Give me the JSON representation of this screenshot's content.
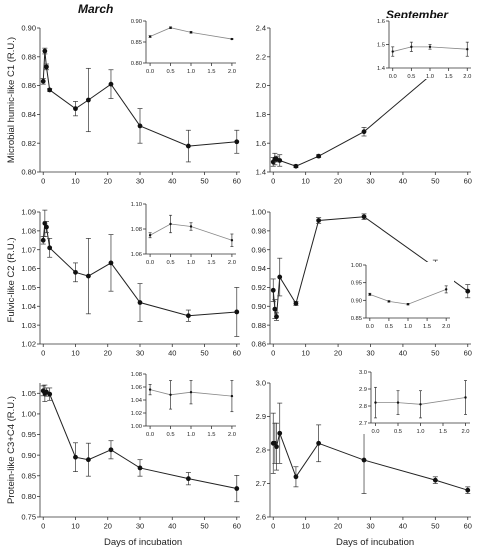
{
  "headers": {
    "left": "March",
    "right": "September"
  },
  "xlabels": {
    "left": "Days of incubation",
    "right": "Days of incubation"
  },
  "chart_data": [
    {
      "type": "line",
      "panel": "March C1",
      "ylabel": "Microbial humic-like C1 (R.U.)",
      "xlim": [
        -1,
        61
      ],
      "ylim": [
        0.8,
        0.9
      ],
      "xticks": [
        "0",
        "10",
        "20",
        "30",
        "40",
        "50",
        "60"
      ],
      "yticks": [
        "0.80",
        "0.82",
        "0.84",
        "0.86",
        "0.88",
        "0.90"
      ],
      "series": [
        {
          "x": [
            0,
            0.5,
            1,
            2,
            10,
            14,
            21,
            30,
            45,
            60
          ],
          "y": [
            0.863,
            0.884,
            0.873,
            0.857,
            0.844,
            0.85,
            0.861,
            0.832,
            0.818,
            0.821
          ],
          "err": [
            0.002,
            0.002,
            0.002,
            0.001,
            0.005,
            0.022,
            0.01,
            0.012,
            0.011,
            0.008
          ]
        }
      ],
      "inset": {
        "xlim": [
          -0.1,
          2.1
        ],
        "ylim": [
          0.8,
          0.9
        ],
        "xticks": [
          "0.0",
          "0.5",
          "1.0",
          "1.5",
          "2.0"
        ],
        "yticks": [
          "0.80",
          "0.85",
          "0.90"
        ],
        "x": [
          0,
          0.5,
          1,
          2
        ],
        "y": [
          0.863,
          0.884,
          0.873,
          0.857
        ],
        "err": [
          0.002,
          0.002,
          0.002,
          0.001
        ]
      }
    },
    {
      "type": "line",
      "panel": "September C1",
      "ylabel": "",
      "xlim": [
        -1,
        61
      ],
      "ylim": [
        1.4,
        2.4
      ],
      "xticks": [
        "0",
        "10",
        "20",
        "30",
        "40",
        "50",
        "60"
      ],
      "yticks": [
        "1.4",
        "1.6",
        "1.8",
        "2.0",
        "2.2",
        "2.4"
      ],
      "series": [
        {
          "x": [
            0,
            0.5,
            1,
            2,
            7,
            14,
            28,
            50,
            60
          ],
          "y": [
            1.47,
            1.49,
            1.49,
            1.48,
            1.44,
            1.51,
            1.68,
            2.1,
            2.3
          ],
          "err": [
            0.03,
            0.04,
            0.02,
            0.04,
            0.01,
            0.01,
            0.03,
            0.01,
            0.01
          ]
        }
      ],
      "inset": {
        "xlim": [
          -0.1,
          2.1
        ],
        "ylim": [
          1.4,
          1.6
        ],
        "xticks": [
          "0.0",
          "0.5",
          "1.0",
          "1.5",
          "2.0"
        ],
        "yticks": [
          "1.4",
          "1.5",
          "1.6"
        ],
        "x": [
          0,
          0.5,
          1,
          2
        ],
        "y": [
          1.47,
          1.49,
          1.49,
          1.48
        ],
        "err": [
          0.02,
          0.02,
          0.01,
          0.03
        ]
      }
    },
    {
      "type": "line",
      "panel": "March C2",
      "ylabel": "Fulvic-like C2 (R.U.)",
      "xlim": [
        -1,
        61
      ],
      "ylim": [
        1.02,
        1.09
      ],
      "xticks": [
        "0",
        "10",
        "20",
        "30",
        "40",
        "50",
        "60"
      ],
      "yticks": [
        "1.02",
        "1.03",
        "1.04",
        "1.05",
        "1.06",
        "1.07",
        "1.08",
        "1.09"
      ],
      "series": [
        {
          "x": [
            0,
            0.5,
            1,
            2,
            10,
            14,
            21,
            30,
            45,
            60
          ],
          "y": [
            1.075,
            1.084,
            1.082,
            1.071,
            1.058,
            1.056,
            1.063,
            1.042,
            1.035,
            1.037
          ],
          "err": [
            0.002,
            0.007,
            0.003,
            0.005,
            0.005,
            0.02,
            0.015,
            0.01,
            0.003,
            0.013
          ]
        }
      ],
      "inset": {
        "xlim": [
          -0.1,
          2.1
        ],
        "ylim": [
          1.06,
          1.1
        ],
        "xticks": [
          "0.0",
          "0.5",
          "1.0",
          "1.5",
          "2.0"
        ],
        "yticks": [
          "1.06",
          "1.08",
          "1.10"
        ],
        "x": [
          0,
          0.5,
          1,
          2
        ],
        "y": [
          1.075,
          1.084,
          1.082,
          1.071
        ],
        "err": [
          0.002,
          0.007,
          0.003,
          0.005
        ]
      }
    },
    {
      "type": "line",
      "panel": "September C2",
      "ylabel": "",
      "xlim": [
        -1,
        61
      ],
      "ylim": [
        0.86,
        1.0
      ],
      "xticks": [
        "0",
        "10",
        "20",
        "30",
        "40",
        "50",
        "60"
      ],
      "yticks": [
        "0.86",
        "0.88",
        "0.90",
        "0.92",
        "0.94",
        "0.96",
        "0.98",
        "1.00"
      ],
      "series": [
        {
          "x": [
            0,
            0.5,
            1,
            2,
            7,
            14,
            28,
            50,
            60
          ],
          "y": [
            0.917,
            0.897,
            0.889,
            0.931,
            0.903,
            0.991,
            0.995,
            0.941,
            0.916
          ],
          "err": [
            0.012,
            0.01,
            0.004,
            0.02,
            0.002,
            0.003,
            0.003,
            0.008,
            0.007
          ]
        }
      ],
      "inset": {
        "xlim": [
          -0.1,
          2.1
        ],
        "ylim": [
          0.85,
          1.0
        ],
        "xticks": [
          "0.0",
          "0.5",
          "1.0",
          "1.5",
          "2.0"
        ],
        "yticks": [
          "0.85",
          "0.90",
          "0.95",
          "1.00"
        ],
        "x": [
          0,
          0.5,
          1,
          2
        ],
        "y": [
          0.917,
          0.897,
          0.889,
          0.931
        ],
        "err": [
          0.003,
          0.002,
          0.002,
          0.01
        ]
      }
    },
    {
      "type": "line",
      "panel": "March C3+C4",
      "ylabel": "Protein-like C3+C4 (R.U.)",
      "xlim": [
        -1,
        61
      ],
      "ylim": [
        0.75,
        1.075
      ],
      "xticks": [
        "0",
        "10",
        "20",
        "30",
        "40",
        "50",
        "60"
      ],
      "yticks": [
        "0.75",
        "0.80",
        "0.85",
        "0.90",
        "0.95",
        "1.00",
        "1.05"
      ],
      "series": [
        {
          "x": [
            0,
            0.5,
            1,
            2,
            10,
            14,
            21,
            30,
            45,
            60
          ],
          "y": [
            1.056,
            1.05,
            1.053,
            1.048,
            0.895,
            0.889,
            0.913,
            0.869,
            0.843,
            0.819
          ],
          "err": [
            0.012,
            0.02,
            0.01,
            0.015,
            0.035,
            0.04,
            0.022,
            0.02,
            0.015,
            0.032
          ]
        }
      ],
      "inset": {
        "xlim": [
          -0.1,
          2.1
        ],
        "ylim": [
          1.0,
          1.08
        ],
        "xticks": [
          "0.0",
          "0.5",
          "1.0",
          "1.5",
          "2.0"
        ],
        "yticks": [
          "1.00",
          "1.02",
          "1.04",
          "1.06",
          "1.08"
        ],
        "x": [
          0,
          0.5,
          1,
          2
        ],
        "y": [
          1.056,
          1.048,
          1.052,
          1.046
        ],
        "err": [
          0.008,
          0.022,
          0.018,
          0.024
        ]
      }
    },
    {
      "type": "line",
      "panel": "September C3+C4",
      "ylabel": "",
      "xlim": [
        -1,
        61
      ],
      "ylim": [
        2.6,
        3.0
      ],
      "xticks": [
        "0",
        "10",
        "20",
        "30",
        "40",
        "50",
        "60"
      ],
      "yticks": [
        "2.6",
        "2.7",
        "2.8",
        "2.9",
        "3.0"
      ],
      "series": [
        {
          "x": [
            0,
            0.5,
            1,
            2,
            7,
            14,
            28,
            50,
            60
          ],
          "y": [
            2.82,
            2.82,
            2.81,
            2.85,
            2.72,
            2.82,
            2.77,
            2.71,
            2.68
          ],
          "err": [
            0.09,
            0.06,
            0.07,
            0.09,
            0.03,
            0.055,
            0.1,
            0.01,
            0.01
          ]
        }
      ],
      "inset": {
        "xlim": [
          -0.1,
          2.1
        ],
        "ylim": [
          2.7,
          3.0
        ],
        "xticks": [
          "0.0",
          "0.5",
          "1.0",
          "1.5",
          "2.0"
        ],
        "yticks": [
          "2.7",
          "2.8",
          "2.9",
          "3.0"
        ],
        "x": [
          0,
          0.5,
          1,
          2
        ],
        "y": [
          2.82,
          2.82,
          2.81,
          2.85
        ],
        "err": [
          0.09,
          0.07,
          0.08,
          0.1
        ]
      }
    }
  ]
}
